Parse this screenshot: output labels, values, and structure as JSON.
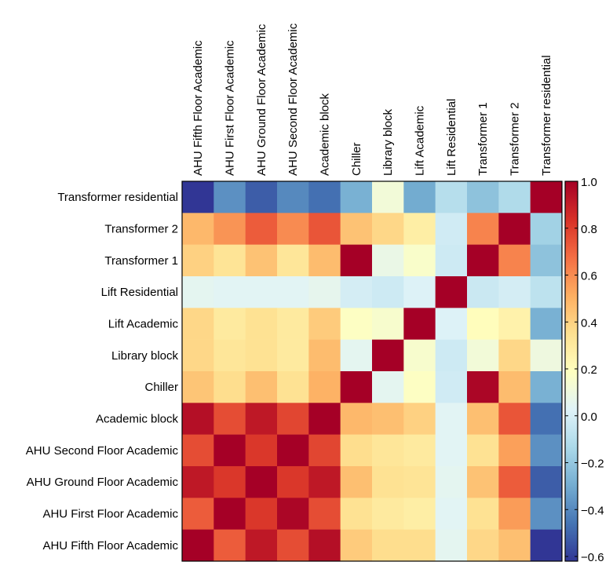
{
  "chart_data": {
    "type": "heatmap",
    "title": "",
    "columns": [
      "AHU Fifth Floor Academic",
      "AHU First Floor Academic",
      "AHU Ground Floor Academic",
      "AHU Second Floor Academic",
      "Academic block",
      "Chiller",
      "Library block",
      "Lift Academic",
      "Lift Residential",
      "Transformer 1",
      "Transformer 2",
      "Transformer residential"
    ],
    "rows": [
      "Transformer residential",
      "Transformer 2",
      "Transformer 1",
      "Lift Residential",
      "Lift Academic",
      "Library block",
      "Chiller",
      "Academic block",
      "AHU Second Floor Academic",
      "AHU Ground Floor Academic",
      "AHU First Floor Academic",
      "AHU Fifth Floor Academic"
    ],
    "values": [
      [
        -0.62,
        -0.38,
        -0.52,
        -0.4,
        -0.47,
        -0.28,
        0.12,
        -0.3,
        -0.1,
        -0.22,
        -0.12,
        1.0
      ],
      [
        0.48,
        0.58,
        0.72,
        0.6,
        0.74,
        0.45,
        0.38,
        0.28,
        -0.02,
        0.62,
        1.0,
        -0.16
      ],
      [
        0.4,
        0.33,
        0.45,
        0.32,
        0.47,
        1.0,
        0.08,
        0.16,
        -0.03,
        1.0,
        0.62,
        -0.22
      ],
      [
        0.05,
        0.04,
        0.04,
        0.04,
        0.06,
        -0.01,
        -0.03,
        0.02,
        1.0,
        -0.04,
        -0.01,
        -0.08
      ],
      [
        0.38,
        0.3,
        0.34,
        0.3,
        0.42,
        0.18,
        0.15,
        1.0,
        0.02,
        0.2,
        0.26,
        -0.28
      ],
      [
        0.38,
        0.32,
        0.34,
        0.3,
        0.47,
        0.05,
        1.0,
        0.15,
        -0.03,
        0.12,
        0.38,
        0.1
      ],
      [
        0.44,
        0.36,
        0.46,
        0.34,
        0.5,
        1.0,
        0.05,
        0.18,
        -0.02,
        0.98,
        0.47,
        -0.28
      ],
      [
        0.95,
        0.76,
        0.92,
        0.78,
        1.0,
        0.48,
        0.46,
        0.4,
        0.04,
        0.46,
        0.74,
        -0.47
      ],
      [
        0.76,
        1.0,
        0.82,
        1.0,
        0.78,
        0.36,
        0.32,
        0.3,
        0.04,
        0.34,
        0.55,
        -0.38
      ],
      [
        0.92,
        0.82,
        1.0,
        0.82,
        0.92,
        0.46,
        0.34,
        0.33,
        0.05,
        0.45,
        0.72,
        -0.52
      ],
      [
        0.72,
        1.0,
        0.82,
        0.98,
        0.76,
        0.34,
        0.3,
        0.28,
        0.04,
        0.34,
        0.56,
        -0.38
      ],
      [
        1.0,
        0.72,
        0.92,
        0.76,
        0.95,
        0.42,
        0.36,
        0.36,
        0.05,
        0.38,
        0.46,
        -0.62
      ]
    ],
    "colorbar": {
      "min": -0.62,
      "max": 1.0,
      "ticks": [
        "1.0",
        "0.8",
        "0.6",
        "0.4",
        "0.2",
        "0.0",
        "−0.2",
        "−0.4",
        "−0.6"
      ],
      "tick_values": [
        1.0,
        0.8,
        0.6,
        0.4,
        0.2,
        0.0,
        -0.2,
        -0.4,
        -0.6
      ]
    },
    "colormap": "RdYlBu_r",
    "grid": false,
    "xlabel": "",
    "ylabel": ""
  }
}
